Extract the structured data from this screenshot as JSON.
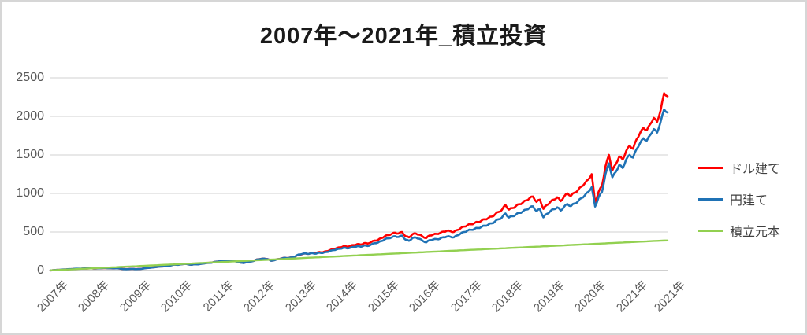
{
  "chart": {
    "title": "2007年～2021年_積立投資"
  },
  "chart_data": {
    "type": "line",
    "title": "2007年～2021年_積立投資",
    "xlabel": "",
    "ylabel": "",
    "ylim": [
      0,
      2500
    ],
    "y_ticks": [
      0,
      500,
      1000,
      1500,
      2000,
      2500
    ],
    "grid": "horizontal-only",
    "grid_color": "#d9d9d9",
    "axis_color": "#bfbfbf",
    "axis_text_color": "#595959",
    "legend_position": "right",
    "x_unit": "month",
    "x_range_note": "monthly points from 2007 to end of 2021",
    "x_labels": [
      "2007年",
      "2008年",
      "2009年",
      "2010年",
      "2011年",
      "2012年",
      "2013年",
      "2014年",
      "2015年",
      "2016年",
      "2017年",
      "2018年",
      "2019年",
      "2020年",
      "2021年",
      "2021年"
    ],
    "x_label_month_index": [
      0,
      12,
      24,
      36,
      48,
      60,
      72,
      84,
      96,
      108,
      120,
      132,
      144,
      156,
      168,
      179
    ],
    "series": [
      {
        "name": "ドル建て",
        "color": "#FF0000",
        "values": [
          2,
          5,
          8,
          10,
          13,
          16,
          18,
          21,
          23,
          24,
          26,
          27,
          28,
          26,
          28,
          30,
          31,
          29,
          27,
          29,
          26,
          20,
          18,
          21,
          22,
          19,
          21,
          27,
          33,
          37,
          42,
          48,
          53,
          55,
          62,
          68,
          78,
          74,
          82,
          88,
          80,
          76,
          83,
          81,
          90,
          96,
          100,
          105,
          115,
          120,
          124,
          128,
          126,
          122,
          118,
          104,
          98,
          112,
          118,
          126,
          145,
          150,
          155,
          148,
          128,
          135,
          148,
          156,
          166,
          162,
          170,
          182,
          205,
          212,
          222,
          216,
          230,
          224,
          240,
          236,
          250,
          262,
          278,
          290,
          300,
          315,
          310,
          320,
          330,
          342,
          336,
          355,
          350,
          368,
          388,
          396,
          420,
          445,
          460,
          475,
          490,
          480,
          500,
          445,
          430,
          470,
          480,
          465,
          440,
          420,
          455,
          465,
          475,
          485,
          505,
          515,
          510,
          500,
          525,
          550,
          570,
          590,
          600,
          615,
          630,
          645,
          665,
          680,
          700,
          730,
          760,
          790,
          850,
          790,
          810,
          835,
          860,
          880,
          910,
          940,
          960,
          890,
          920,
          800,
          850,
          890,
          920,
          950,
          900,
          960,
          1000,
          970,
          1010,
          1040,
          1090,
          1130,
          1180,
          1250,
          880,
          1020,
          1100,
          1350,
          1500,
          1300,
          1380,
          1480,
          1440,
          1550,
          1620,
          1580,
          1700,
          1780,
          1850,
          1820,
          1900,
          1980,
          1930,
          2080,
          2300,
          2260
        ]
      },
      {
        "name": "円建て",
        "color": "#1F72B5",
        "values": [
          2,
          5,
          8,
          11,
          14,
          17,
          19,
          22,
          24,
          25,
          27,
          28,
          29,
          27,
          29,
          31,
          32,
          30,
          28,
          30,
          27,
          19,
          17,
          20,
          21,
          18,
          20,
          26,
          32,
          36,
          41,
          47,
          52,
          54,
          61,
          67,
          77,
          73,
          81,
          87,
          79,
          75,
          82,
          80,
          89,
          95,
          99,
          104,
          114,
          119,
          123,
          127,
          125,
          121,
          117,
          103,
          97,
          111,
          117,
          125,
          144,
          149,
          154,
          147,
          127,
          134,
          147,
          155,
          165,
          161,
          170,
          183,
          208,
          214,
          222,
          216,
          226,
          218,
          232,
          228,
          240,
          250,
          264,
          274,
          282,
          295,
          288,
          296,
          305,
          315,
          308,
          325,
          318,
          335,
          355,
          362,
          382,
          405,
          418,
          430,
          445,
          435,
          452,
          400,
          385,
          420,
          428,
          412,
          385,
          365,
          395,
          402,
          408,
          412,
          432,
          440,
          438,
          430,
          455,
          480,
          500,
          518,
          528,
          540,
          552,
          565,
          582,
          595,
          612,
          638,
          665,
          690,
          740,
          688,
          705,
          725,
          748,
          765,
          790,
          815,
          832,
          770,
          795,
          690,
          735,
          770,
          795,
          820,
          778,
          828,
          862,
          836,
          870,
          895,
          940,
          975,
          1020,
          1080,
          830,
          950,
          1020,
          1250,
          1390,
          1210,
          1280,
          1370,
          1330,
          1440,
          1500,
          1465,
          1575,
          1650,
          1715,
          1685,
          1760,
          1835,
          1790,
          1930,
          2090,
          2050
        ]
      },
      {
        "name": "積立元本",
        "color": "#92D050",
        "values": [
          2,
          4,
          7,
          9,
          11,
          13,
          15,
          17,
          20,
          22,
          24,
          26,
          28,
          30,
          33,
          35,
          37,
          39,
          41,
          43,
          46,
          48,
          50,
          52,
          54,
          56,
          59,
          61,
          63,
          65,
          67,
          69,
          72,
          74,
          76,
          78,
          80,
          83,
          85,
          87,
          89,
          91,
          94,
          96,
          98,
          100,
          102,
          105,
          107,
          109,
          111,
          113,
          115,
          118,
          120,
          122,
          124,
          126,
          129,
          131,
          133,
          135,
          137,
          139,
          142,
          144,
          146,
          148,
          150,
          153,
          155,
          157,
          159,
          161,
          164,
          166,
          168,
          170,
          172,
          175,
          177,
          179,
          181,
          183,
          185,
          188,
          190,
          192,
          194,
          196,
          199,
          201,
          203,
          205,
          207,
          210,
          211,
          214,
          216,
          218,
          220,
          222,
          225,
          227,
          229,
          231,
          233,
          236,
          237,
          240,
          242,
          244,
          246,
          248,
          251,
          253,
          255,
          257,
          259,
          262,
          263,
          266,
          268,
          270,
          272,
          274,
          277,
          279,
          281,
          283,
          285,
          288,
          289,
          292,
          294,
          296,
          298,
          300,
          303,
          305,
          307,
          309,
          311,
          314,
          315,
          318,
          320,
          322,
          324,
          326,
          329,
          331,
          333,
          335,
          337,
          340,
          341,
          344,
          346,
          348,
          350,
          352,
          355,
          357,
          359,
          361,
          363,
          366,
          367,
          370,
          372,
          374,
          376,
          378,
          381,
          383,
          385,
          387,
          389,
          390
        ]
      }
    ]
  }
}
